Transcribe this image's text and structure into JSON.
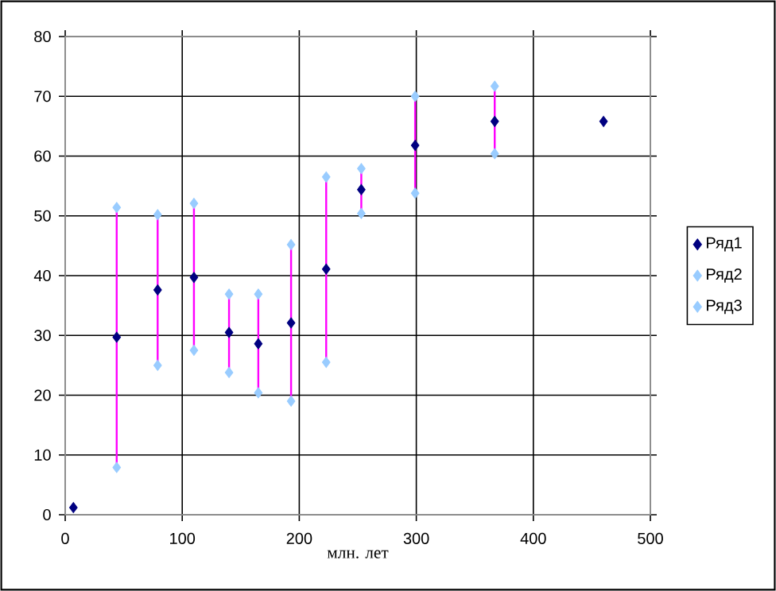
{
  "chart_data": {
    "type": "scatter",
    "xlabel": "млн. лет",
    "xlim": [
      0,
      500
    ],
    "ylim": [
      0,
      80
    ],
    "xticks": [
      0,
      100,
      200,
      300,
      400,
      500
    ],
    "yticks": [
      0,
      10,
      20,
      30,
      40,
      50,
      60,
      70,
      80
    ],
    "grid": true,
    "legend": "right",
    "marker": "diamond",
    "series": [
      {
        "type": "line",
        "marker": "none",
        "color": "#ff00ff",
        "x": [
          44,
          44
        ],
        "values": [
          7.9,
          51.4
        ]
      },
      {
        "type": "line",
        "marker": "none",
        "color": "#ff00ff",
        "x": [
          79,
          79
        ],
        "values": [
          25.0,
          50.2
        ]
      },
      {
        "type": "line",
        "marker": "none",
        "color": "#ff00ff",
        "x": [
          110,
          110
        ],
        "values": [
          27.5,
          52.1
        ]
      },
      {
        "type": "line",
        "marker": "none",
        "color": "#ff00ff",
        "x": [
          140,
          140
        ],
        "values": [
          23.8,
          36.9
        ]
      },
      {
        "type": "line",
        "marker": "none",
        "color": "#ff00ff",
        "x": [
          165,
          165
        ],
        "values": [
          20.4,
          36.9
        ]
      },
      {
        "type": "line",
        "marker": "none",
        "color": "#ff00ff",
        "x": [
          193,
          193
        ],
        "values": [
          19.0,
          45.2
        ]
      },
      {
        "type": "line",
        "marker": "none",
        "color": "#ff00ff",
        "x": [
          223,
          223
        ],
        "values": [
          25.5,
          56.5
        ]
      },
      {
        "type": "line",
        "marker": "none",
        "color": "#ff00ff",
        "x": [
          253,
          253
        ],
        "values": [
          50.4,
          57.9
        ]
      },
      {
        "type": "line",
        "marker": "none",
        "color": "#ff00ff",
        "x": [
          299,
          299
        ],
        "values": [
          53.8,
          70.0
        ]
      },
      {
        "type": "line",
        "marker": "none",
        "color": "#ff00ff",
        "x": [
          367,
          367
        ],
        "values": [
          60.4,
          71.7
        ]
      },
      {
        "name": "Ряд1",
        "color": "#000080",
        "x": [
          7,
          44,
          79,
          110,
          140,
          165,
          193,
          223,
          253,
          299,
          367,
          460
        ],
        "values": [
          1.2,
          29.7,
          37.6,
          39.7,
          30.5,
          28.6,
          32.1,
          41.1,
          54.4,
          61.8,
          65.8,
          65.8
        ]
      },
      {
        "name": "Ряд2",
        "color": "#99ccff",
        "x": [
          44,
          79,
          110,
          140,
          165,
          193,
          223,
          253,
          299,
          367
        ],
        "values": [
          7.9,
          25.0,
          27.5,
          23.8,
          20.4,
          19.0,
          25.5,
          50.4,
          53.8,
          60.4
        ]
      },
      {
        "name": "Ряд3",
        "color": "#99ccff",
        "x": [
          44,
          79,
          110,
          140,
          165,
          193,
          223,
          253,
          299,
          367
        ],
        "values": [
          51.4,
          50.2,
          52.1,
          36.9,
          36.9,
          45.2,
          56.5,
          57.9,
          70.0,
          71.7
        ]
      }
    ]
  }
}
